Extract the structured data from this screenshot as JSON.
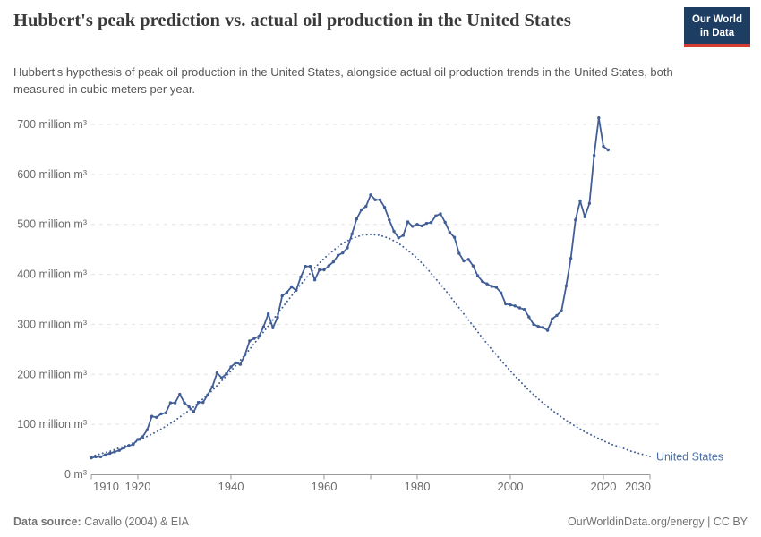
{
  "header": {
    "title": "Hubbert's peak prediction vs. actual oil production in the United States",
    "subtitle": "Hubbert's hypothesis of peak oil production in the United States, alongside actual oil production trends in the United States, both measured in cubic meters per year.",
    "logo": {
      "line1": "Our World",
      "line2": "in Data"
    }
  },
  "footer": {
    "source_label": "Data source:",
    "source_text": " Cavallo (2004) & EIA",
    "right_text": "OurWorldinData.org/energy | CC BY"
  },
  "colors": {
    "line": "#425e96",
    "entity_label": "#4a6fa8",
    "grid": "#e2e2e2",
    "axis": "#9a9a9a",
    "tick_text": "#6b6b6b",
    "logo_bg": "#1d3d63",
    "logo_stripe": "#d43b33"
  },
  "chart_data": {
    "type": "line",
    "title": "Hubbert's peak prediction vs. actual oil production in the United States",
    "unit": "cubic meters per year",
    "entity_label": "United States",
    "xlim": [
      1910,
      2030
    ],
    "ylim": [
      0,
      700
    ],
    "x_ticks": [
      1910,
      1920,
      1940,
      1960,
      1980,
      2000,
      2020,
      2030
    ],
    "x_unlabeled_ticks": [
      1970
    ],
    "y_ticks": [
      {
        "value": 0,
        "label": "0 m³"
      },
      {
        "value": 100,
        "label": "100 million m³"
      },
      {
        "value": 200,
        "label": "200 million m³"
      },
      {
        "value": 300,
        "label": "300 million m³"
      },
      {
        "value": 400,
        "label": "400 million m³"
      },
      {
        "value": 500,
        "label": "500 million m³"
      },
      {
        "value": 600,
        "label": "600 million m³"
      },
      {
        "value": 700,
        "label": "700 million m³"
      }
    ],
    "grid": true,
    "legend_position": "end-of-line-label",
    "series": [
      {
        "name": "United States — actual oil production (million m³ per year)",
        "style": "solid",
        "markers": true,
        "start_year": 1910,
        "step": 1,
        "values": [
          33,
          35,
          35,
          39,
          42,
          45,
          48,
          53,
          57,
          60,
          70,
          75,
          89,
          116,
          114,
          121,
          123,
          143,
          143,
          160,
          143,
          135,
          125,
          144,
          144,
          159,
          175,
          203,
          193,
          201,
          215,
          223,
          220,
          239,
          267,
          272,
          276,
          295,
          321,
          293,
          314,
          357,
          364,
          375,
          368,
          395,
          416,
          416,
          389,
          409,
          409,
          417,
          425,
          438,
          443,
          453,
          481,
          511,
          529,
          536,
          559,
          549,
          549,
          534,
          509,
          486,
          473,
          478,
          505,
          496,
          500,
          497,
          502,
          504,
          517,
          521,
          504,
          484,
          474,
          442,
          427,
          430,
          417,
          397,
          386,
          381,
          376,
          374,
          363,
          341,
          339,
          337,
          333,
          330,
          315,
          300,
          296,
          294,
          288,
          311,
          318,
          327,
          377,
          432,
          509,
          547,
          515,
          542,
          638,
          713,
          656,
          649
        ]
      },
      {
        "name": "Hubbert's peak prediction (million m³ per year)",
        "style": "dotted",
        "markers": false,
        "start_year": 1910,
        "step": 2,
        "values": [
          36,
          41,
          46,
          53,
          59,
          67,
          76,
          85,
          96,
          108,
          121,
          135,
          151,
          168,
          187,
          207,
          228,
          250,
          273,
          297,
          321,
          345,
          369,
          391,
          413,
          432,
          448,
          462,
          472,
          478,
          480,
          478,
          472,
          462,
          448,
          432,
          413,
          391,
          369,
          345,
          321,
          297,
          273,
          250,
          228,
          207,
          187,
          168,
          151,
          135,
          121,
          108,
          96,
          85,
          76,
          67,
          59,
          53,
          46,
          41,
          36
        ]
      }
    ]
  }
}
